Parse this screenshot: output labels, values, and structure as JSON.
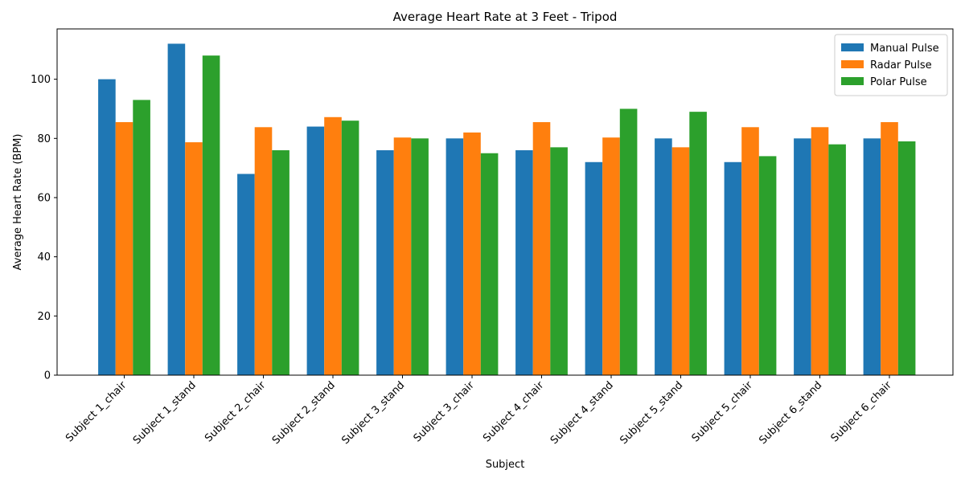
{
  "chart_data": {
    "type": "bar",
    "title": "Average Heart Rate at 3 Feet - Tripod",
    "xlabel": "Subject",
    "ylabel": "Average Heart Rate (BPM)",
    "ylim": [
      0,
      117
    ],
    "yticks": [
      0,
      20,
      40,
      60,
      80,
      100
    ],
    "grid": false,
    "legend_position": "top-right",
    "categories": [
      "Subject 1_chair",
      "Subject 1_stand",
      "Subject 2_chair",
      "Subject 2_stand",
      "Subject 3_stand",
      "Subject 3_chair",
      "Subject 4_chair",
      "Subject 4_stand",
      "Subject 5_stand",
      "Subject 5_chair",
      "Subject 6_stand",
      "Subject 6_chair"
    ],
    "series": [
      {
        "name": "Manual Pulse",
        "color": "#1f77b4",
        "values": [
          100,
          112,
          68,
          84,
          76,
          80,
          76,
          72,
          80,
          72,
          80,
          80
        ]
      },
      {
        "name": "Radar Pulse",
        "color": "#ff7f0e",
        "values": [
          85.5,
          78.7,
          83.8,
          87.2,
          80.3,
          82,
          85.5,
          80.3,
          77,
          83.8,
          83.8,
          85.5
        ]
      },
      {
        "name": "Polar Pulse",
        "color": "#2ca02c",
        "values": [
          93,
          108,
          76,
          86,
          80,
          75,
          77,
          90,
          89,
          74,
          78,
          79
        ]
      }
    ]
  }
}
